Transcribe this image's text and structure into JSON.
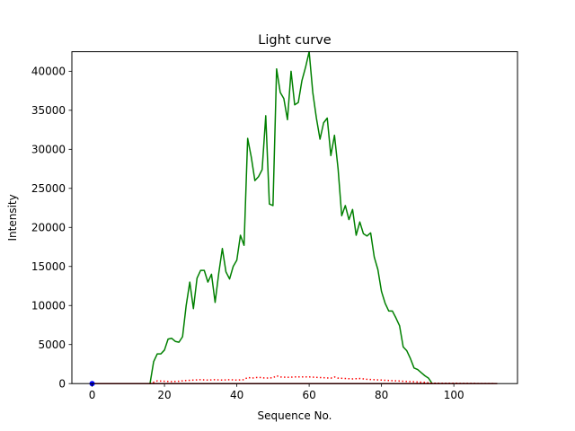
{
  "chart_data": {
    "type": "line",
    "title": "Light curve",
    "xlabel": "Sequence No.",
    "ylabel": "Intensity",
    "xlim": [
      -5.6,
      117.6
    ],
    "ylim": [
      0,
      42500
    ],
    "xticks": [
      0,
      20,
      40,
      60,
      80,
      100
    ],
    "yticks": [
      0,
      5000,
      10000,
      15000,
      20000,
      25000,
      30000,
      35000,
      40000
    ],
    "grid": false,
    "series": [
      {
        "color": "#008000",
        "style": "solid",
        "x": [
          0,
          16,
          17,
          18,
          19,
          20,
          21,
          22,
          23,
          24,
          25,
          26,
          27,
          28,
          29,
          30,
          31,
          32,
          33,
          34,
          35,
          36,
          37,
          38,
          39,
          40,
          41,
          42,
          43,
          44,
          45,
          46,
          47,
          48,
          49,
          50,
          51,
          52,
          53,
          54,
          55,
          56,
          57,
          58,
          59,
          60,
          61,
          62,
          63,
          64,
          65,
          66,
          67,
          68,
          69,
          70,
          71,
          72,
          73,
          74,
          75,
          76,
          77,
          78,
          79,
          80,
          81,
          82,
          83,
          84,
          85,
          86,
          87,
          88,
          89,
          90,
          91,
          92,
          93,
          94,
          112
        ],
        "y": [
          0,
          0,
          2800,
          3800,
          3800,
          4300,
          5700,
          5800,
          5400,
          5300,
          6000,
          10000,
          13000,
          9600,
          13500,
          14500,
          14500,
          13000,
          14000,
          10400,
          14100,
          17300,
          14300,
          13400,
          15000,
          15800,
          19000,
          17700,
          31400,
          29000,
          26000,
          26500,
          27400,
          34300,
          23000,
          22800,
          40300,
          37300,
          36500,
          33800,
          40000,
          35700,
          36000,
          38800,
          40500,
          42500,
          37300,
          34000,
          31300,
          33400,
          34000,
          29200,
          31800,
          27500,
          21500,
          22800,
          21000,
          22300,
          19000,
          20700,
          19200,
          18900,
          19300,
          16200,
          14600,
          11800,
          10300,
          9300,
          9300,
          8400,
          7400,
          4700,
          4200,
          3200,
          2000,
          1800,
          1400,
          1000,
          700,
          0,
          0
        ]
      },
      {
        "color": "#ff0000",
        "style": "dotted",
        "x": [
          0,
          16,
          18,
          20,
          22,
          24,
          26,
          28,
          30,
          32,
          34,
          36,
          38,
          40,
          42,
          43,
          44,
          46,
          48,
          50,
          51,
          52,
          54,
          56,
          58,
          60,
          62,
          64,
          66,
          67,
          68,
          70,
          72,
          74,
          76,
          78,
          80,
          82,
          84,
          86,
          88,
          90,
          92,
          94,
          112
        ],
        "y": [
          0,
          0,
          350,
          300,
          250,
          300,
          400,
          450,
          500,
          450,
          500,
          450,
          500,
          450,
          500,
          800,
          700,
          800,
          700,
          750,
          1000,
          850,
          800,
          850,
          850,
          850,
          800,
          750,
          700,
          850,
          700,
          650,
          600,
          650,
          550,
          500,
          450,
          400,
          350,
          300,
          250,
          200,
          150,
          50,
          0
        ]
      },
      {
        "color": "#8b0000",
        "style": "solid",
        "x": [
          0,
          112
        ],
        "y": [
          0,
          0
        ]
      },
      {
        "color": "#0000ff",
        "style": "marker",
        "x": [
          0
        ],
        "y": [
          0
        ]
      }
    ]
  }
}
